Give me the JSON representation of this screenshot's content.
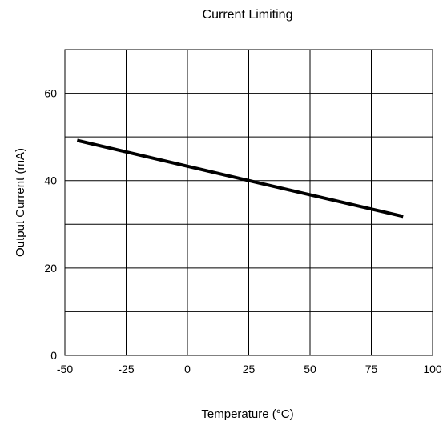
{
  "chart_data": {
    "type": "line",
    "title": "Current Limiting",
    "xlabel": "Temperature (°C)",
    "ylabel": "Output Current (mA)",
    "xlim": [
      -50,
      100
    ],
    "ylim": [
      0,
      70
    ],
    "x_ticks": [
      -50,
      -25,
      0,
      25,
      50,
      75,
      100
    ],
    "x_tick_labels": [
      "-50",
      "-25",
      "0",
      "25",
      "50",
      "75",
      "100"
    ],
    "y_ticks": [
      0,
      20,
      40,
      60
    ],
    "y_tick_labels": [
      "0",
      "20",
      "40",
      "60"
    ],
    "x_grid": [
      -50,
      -25,
      0,
      25,
      50,
      75,
      100
    ],
    "y_grid": [
      0,
      10,
      20,
      30,
      40,
      50,
      60,
      70
    ],
    "grid": true,
    "series": [
      {
        "color": "#000000",
        "x": [
          -45,
          25,
          88
        ],
        "y": [
          49.2,
          40.0,
          31.8
        ]
      }
    ]
  }
}
